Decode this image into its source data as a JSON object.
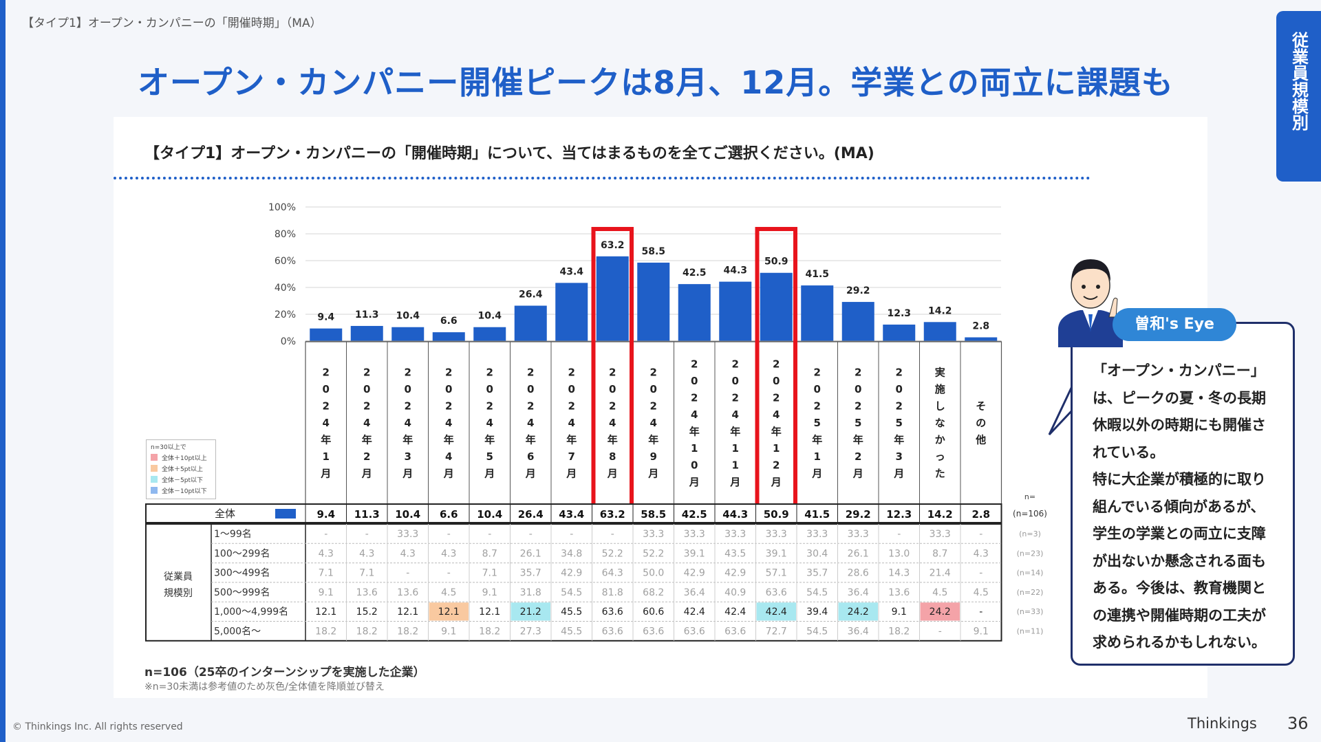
{
  "header": {
    "breadcrumb": "【タイプ1】オープン・カンパニーの「開催時期」（MA）",
    "headline": "オープン・カンパニー開催ピークは8月、12月。学業との両立に課題も",
    "side_tab": "従業員規模別"
  },
  "question": "【タイプ1】オープン・カンパニーの「開催時期」について、当てはまるものを全てご選択ください。(MA)",
  "chart_data": {
    "type": "bar",
    "ylim": [
      0,
      100
    ],
    "y_ticks": [
      "100%",
      "80%",
      "60%",
      "40%",
      "20%",
      "0%"
    ],
    "y_tick_values": [
      100,
      80,
      60,
      40,
      20,
      0
    ],
    "categories": [
      "2024年1月",
      "2024年2月",
      "2024年3月",
      "2024年4月",
      "2024年5月",
      "2024年6月",
      "2024年7月",
      "2024年8月",
      "2024年9月",
      "2024年10月",
      "2024年11月",
      "2024年12月",
      "2025年1月",
      "2025年2月",
      "2025年3月",
      "実施しなかった",
      "その他"
    ],
    "values": [
      9.4,
      11.3,
      10.4,
      6.6,
      10.4,
      26.4,
      43.4,
      63.2,
      58.5,
      42.5,
      44.3,
      50.9,
      41.5,
      29.2,
      12.3,
      14.2,
      2.8
    ],
    "value_labels": [
      "9.4",
      "11.3",
      "10.4",
      "6.6",
      "10.4",
      "26.4",
      "43.4",
      "63.2",
      "58.5",
      "42.5",
      "44.3",
      "50.9",
      "41.5",
      "29.2",
      "12.3",
      "14.2",
      "2.8"
    ],
    "highlight_categories": [
      "2024年8月",
      "2024年12月"
    ],
    "bar_color": "#1f5fc8",
    "highlight_color": "#e8141c"
  },
  "table": {
    "n_header": "n=",
    "total": {
      "label": "全体",
      "values": [
        "9.4",
        "11.3",
        "10.4",
        "6.6",
        "10.4",
        "26.4",
        "43.4",
        "63.2",
        "58.5",
        "42.5",
        "44.3",
        "50.9",
        "41.5",
        "29.2",
        "12.3",
        "14.2",
        "2.8"
      ],
      "n": "(n=106)"
    },
    "group_label": "従業員規模別",
    "rows": [
      {
        "label": "1〜99名",
        "n": "(n=3)",
        "gray": true,
        "values": [
          "-",
          "-",
          "33.3",
          "-",
          "-",
          "-",
          "-",
          "-",
          "33.3",
          "33.3",
          "33.3",
          "33.3",
          "33.3",
          "33.3",
          "-",
          "33.3",
          "-"
        ],
        "hl": [
          "",
          "",
          "",
          "",
          "",
          "",
          "",
          "",
          "",
          "",
          "",
          "",
          "",
          "",
          "",
          "",
          ""
        ]
      },
      {
        "label": "100〜299名",
        "n": "(n=23)",
        "gray": true,
        "values": [
          "4.3",
          "4.3",
          "4.3",
          "4.3",
          "8.7",
          "26.1",
          "34.8",
          "52.2",
          "52.2",
          "39.1",
          "43.5",
          "39.1",
          "30.4",
          "26.1",
          "13.0",
          "8.7",
          "4.3"
        ],
        "hl": [
          "",
          "",
          "",
          "",
          "",
          "",
          "",
          "",
          "",
          "",
          "",
          "",
          "",
          "",
          "",
          "",
          ""
        ]
      },
      {
        "label": "300〜499名",
        "n": "(n=14)",
        "gray": true,
        "values": [
          "7.1",
          "7.1",
          "-",
          "-",
          "7.1",
          "35.7",
          "42.9",
          "64.3",
          "50.0",
          "42.9",
          "42.9",
          "57.1",
          "35.7",
          "28.6",
          "14.3",
          "21.4",
          "-"
        ],
        "hl": [
          "",
          "",
          "",
          "",
          "",
          "",
          "",
          "",
          "",
          "",
          "",
          "",
          "",
          "",
          "",
          "",
          ""
        ]
      },
      {
        "label": "500〜999名",
        "n": "(n=22)",
        "gray": true,
        "values": [
          "9.1",
          "13.6",
          "13.6",
          "4.5",
          "9.1",
          "31.8",
          "54.5",
          "81.8",
          "68.2",
          "36.4",
          "40.9",
          "63.6",
          "54.5",
          "36.4",
          "13.6",
          "4.5",
          "4.5"
        ],
        "hl": [
          "",
          "",
          "",
          "",
          "",
          "",
          "",
          "",
          "",
          "",
          "",
          "",
          "",
          "",
          "",
          "",
          ""
        ]
      },
      {
        "label": "1,000〜4,999名",
        "n": "(n=33)",
        "gray": false,
        "values": [
          "12.1",
          "15.2",
          "12.1",
          "12.1",
          "12.1",
          "21.2",
          "45.5",
          "63.6",
          "60.6",
          "42.4",
          "42.4",
          "42.4",
          "39.4",
          "24.2",
          "9.1",
          "24.2",
          "-"
        ],
        "hl": [
          "",
          "",
          "",
          "p5",
          "",
          "m5",
          "",
          "",
          "",
          "",
          "",
          "m5",
          "",
          "m5",
          "",
          "p10",
          ""
        ]
      },
      {
        "label": "5,000名〜",
        "n": "(n=11)",
        "gray": true,
        "values": [
          "18.2",
          "18.2",
          "18.2",
          "9.1",
          "18.2",
          "27.3",
          "45.5",
          "63.6",
          "63.6",
          "63.6",
          "63.6",
          "72.7",
          "54.5",
          "36.4",
          "18.2",
          "-",
          "9.1"
        ],
        "hl": [
          "",
          "",
          "",
          "",
          "",
          "",
          "",
          "",
          "",
          "",
          "",
          "",
          "",
          "",
          "",
          "",
          ""
        ]
      }
    ]
  },
  "legend": {
    "title": "n=30以上で",
    "items": [
      {
        "label": "全体＋10pt以上",
        "color": "#f4a3a8"
      },
      {
        "label": "全体＋5pt以上",
        "color": "#f9c9a0"
      },
      {
        "label": "全体－5pt以下",
        "color": "#a8e8f0"
      },
      {
        "label": "全体－10pt以下",
        "color": "#8fb8ef"
      }
    ]
  },
  "notes": {
    "n": "n=106（25卒のインターンシップを実施した企業）",
    "small": "※n=30未満は参考値のため灰色/全体値を降順並び替え"
  },
  "eye": {
    "badge": "曽和's Eye",
    "lines": [
      "「オープン・カンパニー」",
      "は、ピークの夏・冬の長期",
      "休暇以外の時期にも開催さ",
      "れている。",
      "特に大企業が積極的に取り",
      "組んでいる傾向があるが、",
      "学生の学業との両立に支障",
      "が出ないか懸念される面も",
      "ある。今後は、教育機関と",
      "の連携や開催時期の工夫が",
      "求められるかもしれない。"
    ]
  },
  "footer": {
    "copyright": "© Thinkings Inc. All rights reserved",
    "brand": "Thinkings",
    "page": "36"
  }
}
